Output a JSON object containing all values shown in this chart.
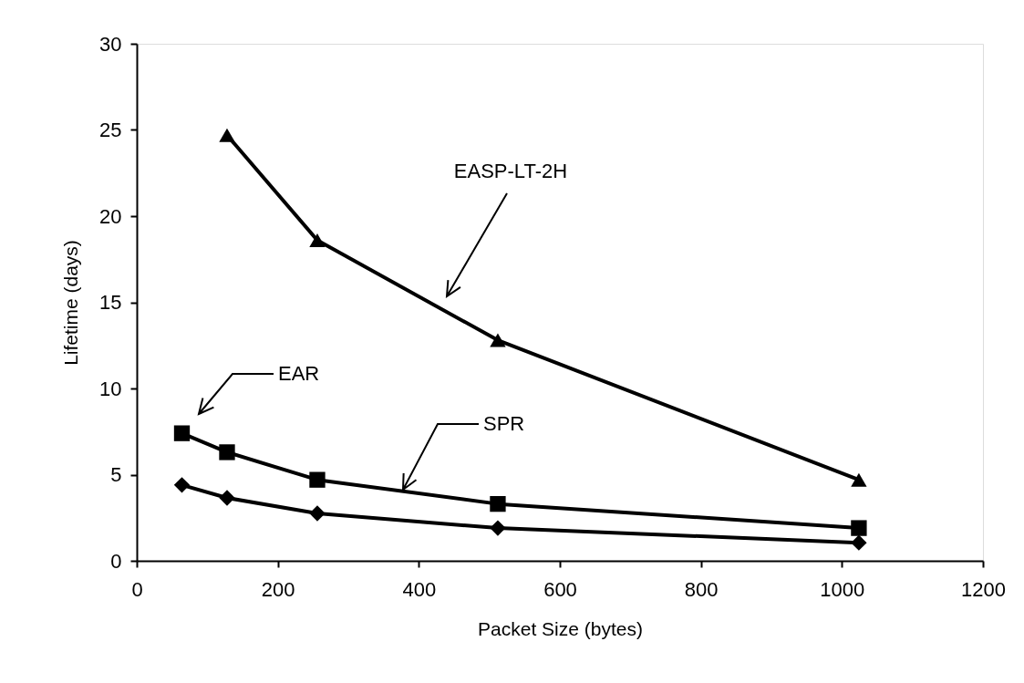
{
  "chart_data": {
    "type": "line",
    "xlabel": "Packet Size (bytes)",
    "ylabel": "Lifetime (days)",
    "xlim": [
      0,
      1200
    ],
    "xticks": [
      0,
      200,
      400,
      600,
      800,
      1000,
      1200
    ],
    "ylim": [
      0,
      30
    ],
    "yticks": [
      0,
      5,
      10,
      15,
      20,
      25,
      30
    ],
    "grid": false,
    "line_style": "solid",
    "series": [
      {
        "color": "#000000",
        "marker": "triangle",
        "x": [
          128,
          256,
          512,
          1024
        ],
        "values": [
          24.7,
          18.6,
          12.8,
          4.7
        ]
      },
      {
        "color": "#000000",
        "marker": "square",
        "x": [
          64,
          128,
          256,
          512,
          1024
        ],
        "values": [
          7.4,
          6.3,
          4.7,
          3.3,
          1.9
        ]
      },
      {
        "color": "#000000",
        "marker": "diamond",
        "x": [
          64,
          128,
          256,
          512,
          1024
        ],
        "values": [
          4.4,
          3.65,
          2.75,
          1.9,
          1.05
        ]
      }
    ],
    "annotations": [
      "EASP-LT-2H",
      "EAR",
      "SPR"
    ]
  }
}
